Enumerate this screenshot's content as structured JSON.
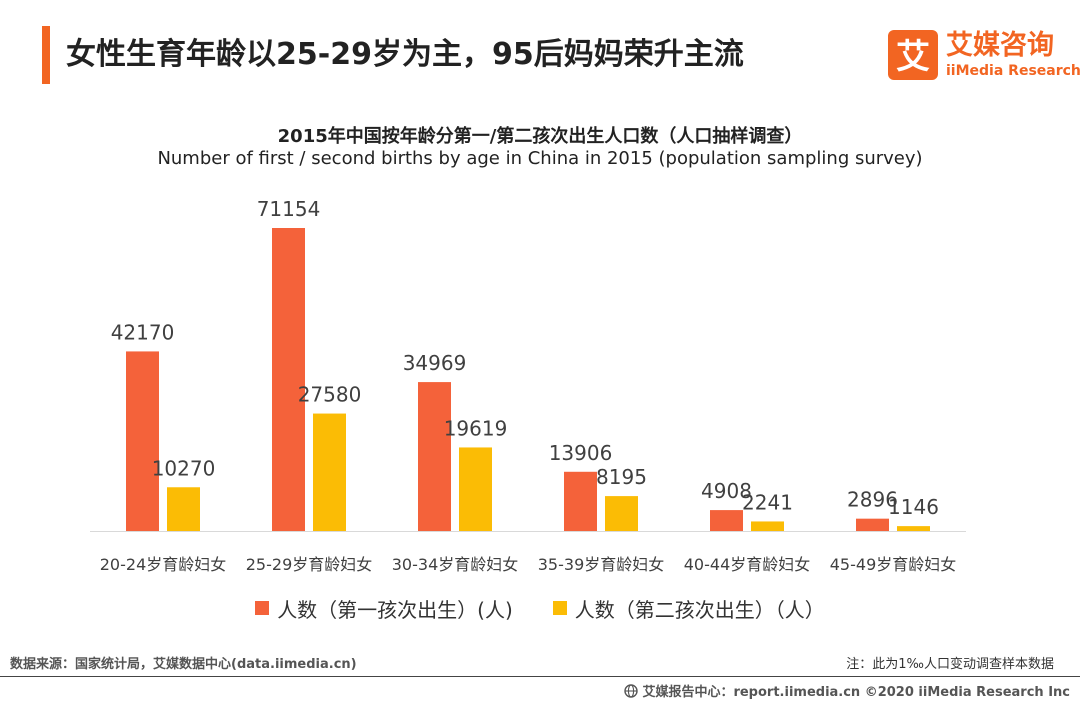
{
  "header": {
    "title": "女性生育年龄以25-29岁为主，95后妈妈荣升主流"
  },
  "logo": {
    "mark_text": "艾",
    "name_cn": "艾媒咨询",
    "name_en": "iiMedia Research"
  },
  "footer": {
    "source": "数据来源：国家统计局，艾媒数据中心(data.iimedia.cn)",
    "note": "注：此为1‰人口变动调查样本数据",
    "copyright": "艾媒报告中心：report.iimedia.cn  ©2020  iiMedia Research  Inc"
  },
  "colors": {
    "accent": "#f26522",
    "series1": "#f4623a",
    "series2": "#fbbc05"
  },
  "chart_data": {
    "type": "bar",
    "title": "2015年中国按年龄分第一/第二孩次出生人口数（人口抽样调查）",
    "subtitle": "Number of first / second births by age in China in 2015 (population sampling survey)",
    "categories": [
      "20-24岁育龄妇女",
      "25-29岁育龄妇女",
      "30-34岁育龄妇女",
      "35-39岁育龄妇女",
      "40-44岁育龄妇女",
      "45-49岁育龄妇女"
    ],
    "series": [
      {
        "name": "人数（第一孩次出生）(人)",
        "values": [
          42170,
          71154,
          34969,
          13906,
          4908,
          2896
        ]
      },
      {
        "name": "人数（第二孩次出生）（人）",
        "values": [
          10270,
          27580,
          19619,
          8195,
          2241,
          1146
        ]
      }
    ],
    "ylim": [
      0,
      71154
    ],
    "grid": false,
    "legend": "bottom"
  }
}
